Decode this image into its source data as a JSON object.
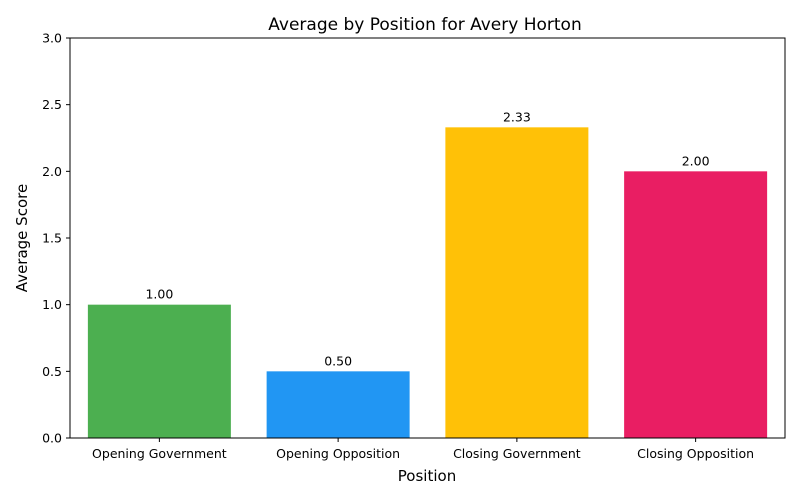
{
  "chart_data": {
    "type": "bar",
    "title": "Average by Position for Avery Horton",
    "xlabel": "Position",
    "ylabel": "Average Score",
    "categories": [
      "Opening Government",
      "Opening Opposition",
      "Closing Government",
      "Closing Opposition"
    ],
    "values": [
      1.0,
      0.5,
      2.33,
      2.0
    ],
    "value_labels": [
      "1.00",
      "0.50",
      "2.33",
      "2.00"
    ],
    "colors": [
      "#4caf50",
      "#2196f3",
      "#ffc107",
      "#e91e63"
    ],
    "ylim": [
      0,
      3
    ],
    "yticks": [
      0,
      0.5,
      1,
      1.5,
      2,
      2.5,
      3
    ],
    "ytick_labels": [
      "0.0",
      "0.5",
      "1.0",
      "1.5",
      "2.0",
      "2.5",
      "3.0"
    ],
    "grid": false,
    "legend": "none"
  }
}
